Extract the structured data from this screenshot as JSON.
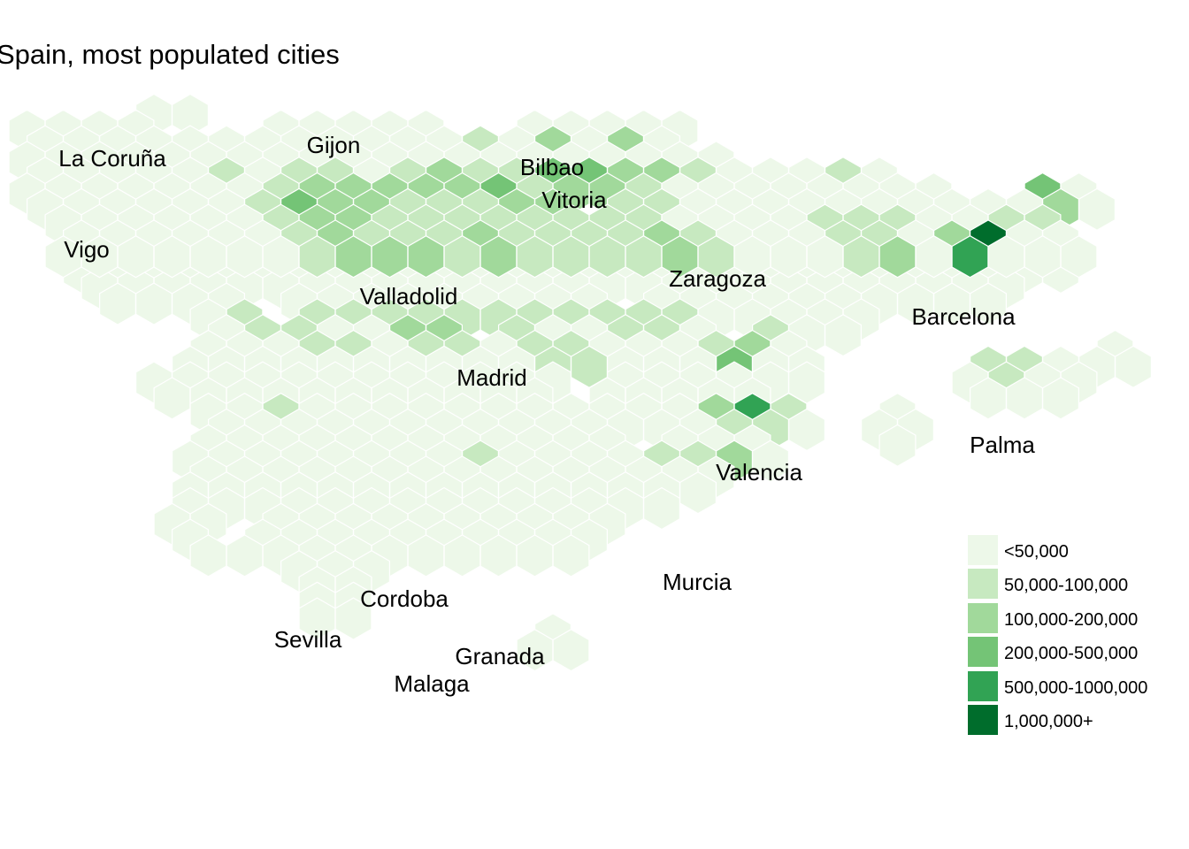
{
  "title": "Spain, most populated cities",
  "legend": {
    "items": [
      {
        "label": "<50,000",
        "color": "#edf8e9"
      },
      {
        "label": "50,000-100,000",
        "color": "#c7e9c0"
      },
      {
        "label": "100,000-200,000",
        "color": "#a1d99b"
      },
      {
        "label": "200,000-500,000",
        "color": "#74c476"
      },
      {
        "label": "500,000-1000,000",
        "color": "#31a354"
      },
      {
        "label": "1,000,000+",
        "color": "#006d2c"
      }
    ]
  },
  "cities": [
    {
      "name": "La Coruña"
    },
    {
      "name": "Gijon"
    },
    {
      "name": "Bilbao"
    },
    {
      "name": "Vitoria"
    },
    {
      "name": "Vigo"
    },
    {
      "name": "Zaragoza"
    },
    {
      "name": "Valladolid"
    },
    {
      "name": "Barcelona"
    },
    {
      "name": "Madrid"
    },
    {
      "name": "Palma"
    },
    {
      "name": "Valencia"
    },
    {
      "name": "Murcia"
    },
    {
      "name": "Cordoba"
    },
    {
      "name": "Sevilla"
    },
    {
      "name": "Granada"
    },
    {
      "name": "Malaga"
    }
  ]
}
